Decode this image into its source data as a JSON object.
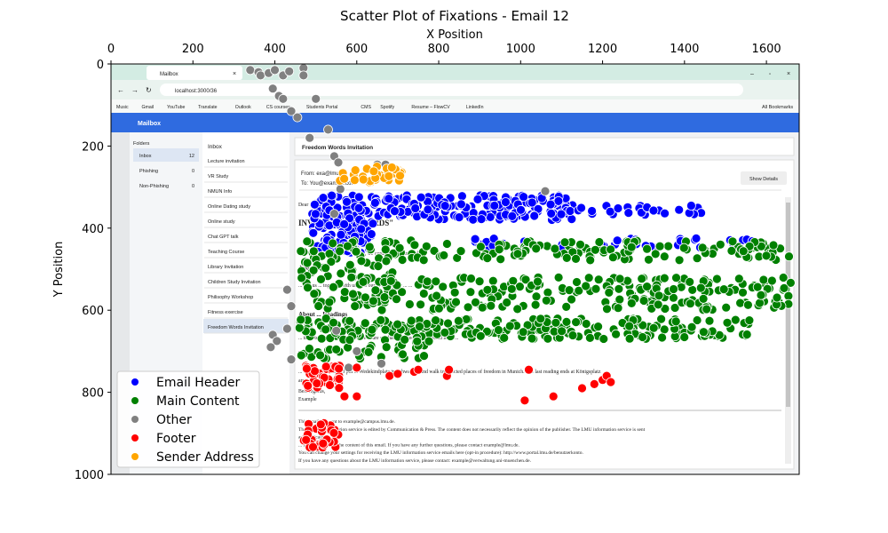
{
  "chart_data": {
    "type": "scatter",
    "title": "Scatter Plot of Fixations - Email 12",
    "xlabel": "X Position",
    "ylabel": "Y Position",
    "xlim": [
      0,
      1680
    ],
    "ylim": [
      1000,
      0
    ],
    "x_axis_position": "top",
    "y_axis_inverted": true,
    "x_ticks": [
      "0",
      "200",
      "400",
      "600",
      "800",
      "1000",
      "1200",
      "1400",
      "1600"
    ],
    "y_ticks": [
      "0",
      "200",
      "400",
      "600",
      "800",
      "1000"
    ],
    "grid": false,
    "legend_placement": "lower-left",
    "series": [
      {
        "name": "Email Header",
        "color": "#0000ff",
        "clusters": [
          {
            "x0": 490,
            "x1": 640,
            "y0": 320,
            "y1": 460,
            "n": 160
          },
          {
            "x0": 640,
            "x1": 1130,
            "y0": 320,
            "y1": 380,
            "n": 180
          },
          {
            "x0": 1140,
            "x1": 1450,
            "y0": 345,
            "y1": 370,
            "n": 25
          },
          {
            "x0": 880,
            "x1": 1630,
            "y0": 425,
            "y1": 450,
            "n": 40
          }
        ]
      },
      {
        "name": "Main Content",
        "color": "#008000",
        "clusters": [
          {
            "x0": 460,
            "x1": 1660,
            "y0": 430,
            "y1": 480,
            "n": 170
          },
          {
            "x0": 460,
            "x1": 700,
            "y0": 480,
            "y1": 520,
            "n": 25
          },
          {
            "x0": 460,
            "x1": 1660,
            "y0": 520,
            "y1": 600,
            "n": 260
          },
          {
            "x0": 460,
            "x1": 1570,
            "y0": 620,
            "y1": 670,
            "n": 230
          },
          {
            "x0": 460,
            "x1": 780,
            "y0": 670,
            "y1": 720,
            "n": 40
          }
        ]
      },
      {
        "name": "Other",
        "color": "#808080",
        "points": [
          [
            340,
            15
          ],
          [
            360,
            20
          ],
          [
            365,
            28
          ],
          [
            385,
            22
          ],
          [
            400,
            15
          ],
          [
            420,
            28
          ],
          [
            435,
            18
          ],
          [
            470,
            10
          ],
          [
            470,
            28
          ],
          [
            395,
            60
          ],
          [
            410,
            78
          ],
          [
            420,
            85
          ],
          [
            440,
            115
          ],
          [
            455,
            130
          ],
          [
            500,
            85
          ],
          [
            530,
            160
          ],
          [
            485,
            180
          ],
          [
            545,
            225
          ],
          [
            555,
            240
          ],
          [
            1060,
            310
          ],
          [
            560,
            305
          ],
          [
            430,
            550
          ],
          [
            440,
            590
          ],
          [
            430,
            645
          ],
          [
            395,
            660
          ],
          [
            405,
            675
          ],
          [
            390,
            690
          ],
          [
            650,
            245
          ],
          [
            670,
            245
          ],
          [
            545,
            365
          ],
          [
            550,
            650
          ],
          [
            600,
            700
          ],
          [
            660,
            730
          ],
          [
            580,
            740
          ],
          [
            440,
            720
          ]
        ]
      },
      {
        "name": "Footer",
        "color": "#ff0000",
        "clusters": [
          {
            "x0": 470,
            "x1": 560,
            "y0": 735,
            "y1": 790,
            "n": 40
          },
          {
            "x0": 470,
            "x1": 560,
            "y0": 870,
            "y1": 935,
            "n": 35
          }
        ],
        "points": [
          [
            600,
            740
          ],
          [
            680,
            760
          ],
          [
            700,
            755
          ],
          [
            740,
            750
          ],
          [
            750,
            745
          ],
          [
            820,
            760
          ],
          [
            825,
            745
          ],
          [
            1020,
            745
          ],
          [
            1150,
            790
          ],
          [
            1180,
            780
          ],
          [
            1200,
            770
          ],
          [
            1210,
            760
          ],
          [
            1220,
            775
          ],
          [
            1080,
            810
          ],
          [
            1010,
            820
          ],
          [
            570,
            810
          ],
          [
            600,
            810
          ]
        ]
      },
      {
        "name": "Sender Address",
        "color": "#ffa500",
        "clusters": [
          {
            "x0": 555,
            "x1": 710,
            "y0": 250,
            "y1": 290,
            "n": 40
          }
        ]
      }
    ]
  },
  "screenshot": {
    "tab_title": "Mailbox",
    "url": "localhost:3000/36",
    "bookmarks": [
      "Music",
      "Gmail",
      "YouTube",
      "Translate",
      "Outlook",
      "CS courses",
      "Students Portal",
      "CMS",
      "Spotify",
      "Resume – FlowCV",
      "LinkedIn"
    ],
    "all_bookmarks": "All Bookmarks",
    "app_title": "Mailbox",
    "folders_label": "Folders",
    "folders": [
      {
        "name": "Inbox",
        "count": "12"
      },
      {
        "name": "Phishing",
        "count": "0"
      },
      {
        "name": "Non-Phishing",
        "count": "0"
      }
    ],
    "inbox_label": "Inbox",
    "emails": [
      "Lecture invitation",
      "VR Study",
      "NMUN Info",
      "Online Dating study",
      "Online study",
      "Chat GPT talk",
      "Teaching Course",
      "Library Invitation",
      "Children Study Invitation",
      "Philisophy Workshop",
      "Fitness exercise",
      "Freedom Words Invitation"
    ],
    "subject": "Freedom Words Invitation",
    "from_line": "From: exa@lmu.de",
    "to_line": "To: You@example.com",
    "show_details": "Show Details",
    "heading": "INVITATION: ... WORDS\"",
    "body_lines": [
      "Dear ...",
      "... \"Freedom Words\" ... by the ..., we cordially ... ... munich.",
      "About ...",
      "... and us ... together with us ... to our ... ... register ... ...",
      "About ... Readings",
      "... texts to the ... performances. You are cordially invited ... ... selected local ...",
      "Location ...",
      "... 10th (Wednesday) 3 pm ... Wedekindplatz in Schwabing and walk to selected places of freedom in Munich. The last reading ends at Königsplatz",
      "around ...",
      "Best regards,",
      "Example"
    ],
    "footer_lines": [
      "This email was sent to example@campus.lmu.de.",
      "The LMU ... information service is edited by Communication & Press. The content does not necessarily reflect the opinion of the publisher. The LMU information service is sent",
      "automatically.",
      "... is responsible for the content of this email. If you have any further questions, please contact example@lmu.de.",
      "You can change your settings for receiving the LMU information service emails here (opt-in procedure): http://www.portal.lmu.de/benutzerkonto.",
      "If you have any questions about the LMU information service, please contact: example@verwaltung.uni-muenchen.de."
    ]
  }
}
